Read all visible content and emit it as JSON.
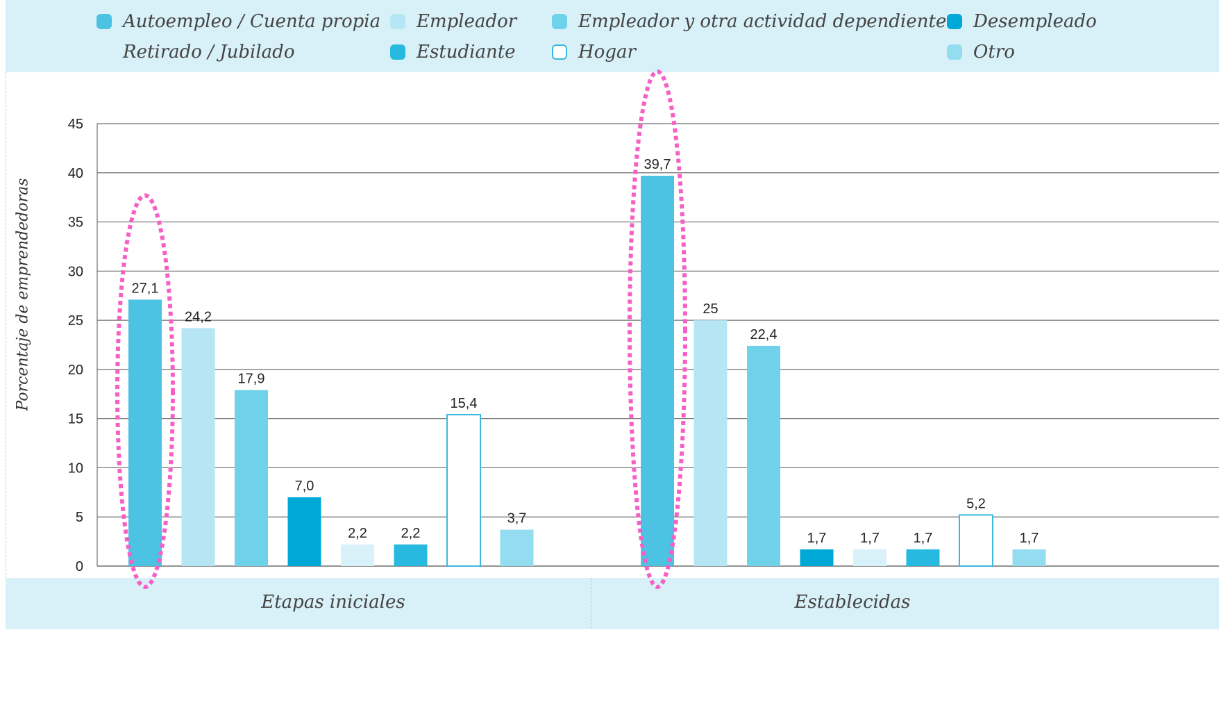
{
  "chart_data": {
    "type": "bar",
    "ylabel": "Porcentaje de emprendedoras",
    "ylim": [
      0,
      45
    ],
    "yticks": [
      "0",
      "5",
      "10",
      "15",
      "20",
      "25",
      "30",
      "35",
      "40",
      "45"
    ],
    "grid": "horizontal",
    "legend_placement": "top",
    "categories": [
      "Etapas iniciales",
      "Establecidas"
    ],
    "series": [
      {
        "name": "Autoempleo / Cuenta propia",
        "color": "#4cc3e3",
        "values": [
          27.1,
          39.7
        ],
        "labels": [
          "27,1",
          "39,7"
        ]
      },
      {
        "name": "Empleador",
        "color": "#b6e6f3",
        "values": [
          24.2,
          25
        ],
        "labels": [
          "24,2",
          "25"
        ]
      },
      {
        "name": "Empleador y otra actividad dependiente",
        "color": "#6fd1ea",
        "values": [
          17.9,
          22.4
        ],
        "labels": [
          "17,9",
          "22,4"
        ]
      },
      {
        "name": "Desempleado",
        "color": "#00a8d8",
        "values": [
          7.0,
          1.7
        ],
        "labels": [
          "7,0",
          "1,7"
        ]
      },
      {
        "name": "Retirado / Jubilado",
        "color": "#d9f2f9",
        "values": [
          2.2,
          1.7
        ],
        "labels": [
          "2,2",
          "1,7"
        ]
      },
      {
        "name": "Estudiante",
        "color": "#27b9e0",
        "values": [
          2.2,
          1.7
        ],
        "labels": [
          "2,2",
          "1,7"
        ]
      },
      {
        "name": "Hogar",
        "color": "#ffffff",
        "outline": "#3bb8de",
        "values": [
          15.4,
          5.2
        ],
        "labels": [
          "15,4",
          "5,2"
        ]
      },
      {
        "name": "Otro",
        "color": "#94dcef",
        "values": [
          3.7,
          1.7
        ],
        "labels": [
          "3,7",
          "1,7"
        ]
      }
    ],
    "highlight": {
      "series": "Autoempleo / Cuenta propia",
      "style": "dotted ellipse",
      "color": "#f65fc6"
    }
  }
}
